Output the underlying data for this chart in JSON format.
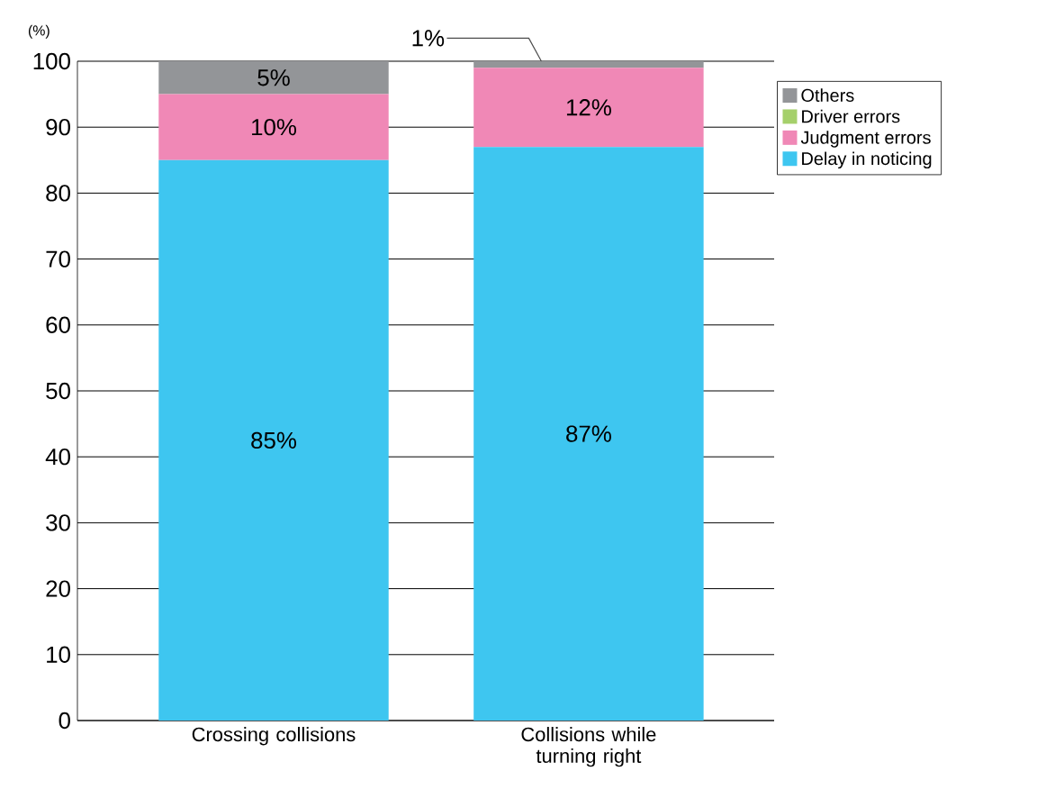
{
  "chart_data": {
    "type": "bar",
    "stacked": true,
    "ylabel": "(%)",
    "categories": [
      "Crossing collisions",
      "Collisions while turning right"
    ],
    "series": [
      {
        "name": "Delay in noticing",
        "color": "#3ec6f0",
        "values": [
          85,
          87
        ],
        "value_labels": [
          "85%",
          "87%"
        ]
      },
      {
        "name": "Judgment errors",
        "color": "#f088b6",
        "values": [
          10,
          12
        ],
        "value_labels": [
          "10%",
          "12%"
        ]
      },
      {
        "name": "Driver errors",
        "color": "#a5d06b",
        "values": [
          0,
          0
        ],
        "value_labels": [
          null,
          null
        ]
      },
      {
        "name": "Others",
        "color": "#939598",
        "values": [
          5,
          1
        ],
        "value_labels": [
          "5%",
          "1%"
        ]
      }
    ],
    "ylim": [
      0,
      100
    ],
    "yticks": [
      0,
      10,
      20,
      30,
      40,
      50,
      60,
      70,
      80,
      90,
      100
    ],
    "grid": "y",
    "legend": "top right"
  }
}
